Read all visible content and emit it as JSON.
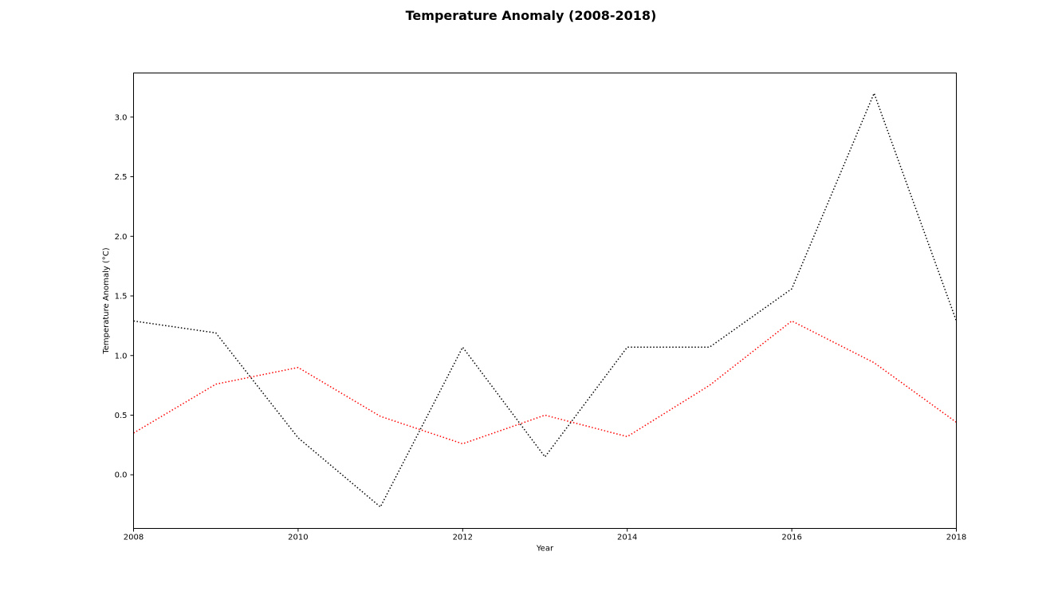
{
  "chart_data": {
    "type": "line",
    "title": "Temperature Anomaly (2008-2018)",
    "xlabel": "Year",
    "ylabel": "Temperature Anomaly (°C)",
    "xlim": [
      2008,
      2018
    ],
    "ylim": [
      -0.45,
      3.37
    ],
    "xticks": [
      2008,
      2010,
      2012,
      2014,
      2016,
      2018
    ],
    "xtick_labels": [
      "2008",
      "2010",
      "2012",
      "2014",
      "2016",
      "2018"
    ],
    "yticks": [
      0.0,
      0.5,
      1.0,
      1.5,
      2.0,
      2.5,
      3.0
    ],
    "ytick_labels": [
      "0.0",
      "0.5",
      "1.0",
      "1.5",
      "2.0",
      "2.5",
      "3.0"
    ],
    "grid": false,
    "x": [
      2008,
      2009,
      2010,
      2011,
      2012,
      2013,
      2014,
      2015,
      2016,
      2017,
      2018
    ],
    "series": [
      {
        "color": "#000000",
        "linestyle": "dotted",
        "values": [
          1.29,
          1.19,
          0.31,
          -0.27,
          1.07,
          0.15,
          1.07,
          1.07,
          1.56,
          3.2,
          1.29
        ]
      },
      {
        "color": "#ff0000",
        "linestyle": "dotted",
        "values": [
          0.35,
          0.76,
          0.9,
          0.49,
          0.26,
          0.5,
          0.32,
          0.75,
          1.29,
          0.94,
          0.44
        ]
      }
    ]
  }
}
